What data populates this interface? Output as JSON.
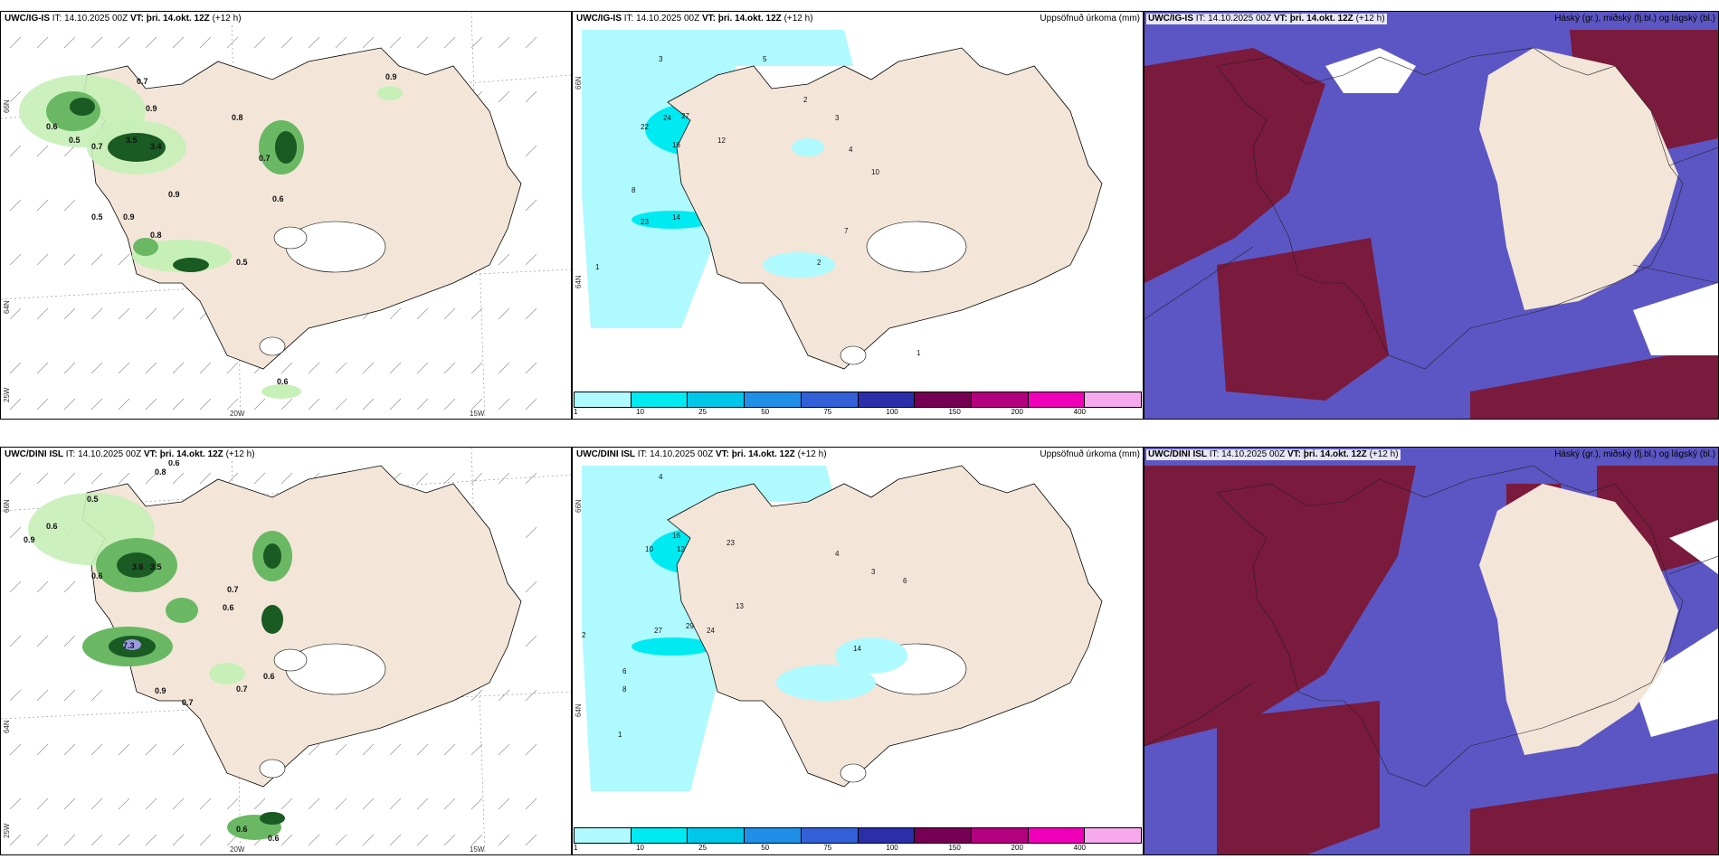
{
  "panels": [
    {
      "id": "p1",
      "model": "UWC/IG-IS",
      "it_label": "IT:",
      "it": "14.10.2025 00Z",
      "vt_label": "VT:",
      "vt": "þri. 14.okt. 12Z",
      "lead": "(+12 h)",
      "right": ""
    },
    {
      "id": "p2",
      "model": "UWC/IG-IS",
      "it_label": "IT:",
      "it": "14.10.2025 00Z",
      "vt_label": "VT:",
      "vt": "þri. 14.okt. 12Z",
      "lead": "(+12 h)",
      "right": "Uppsöfnuð úrkoma (mm)"
    },
    {
      "id": "p3",
      "model": "UWC/IG-IS",
      "it_label": "IT:",
      "it": "14.10.2025 00Z",
      "vt_label": "VT:",
      "vt": "þri. 14.okt. 12Z",
      "lead": "(+12 h)",
      "right": "Háský (gr.), miðský (fj.bl.) og lágský (bl.)"
    },
    {
      "id": "p4",
      "model": "UWC/DINI ISL",
      "it_label": "IT:",
      "it": "14.10.2025 00Z",
      "vt_label": "VT:",
      "vt": "þri. 14.okt. 12Z",
      "lead": "(+12 h)",
      "right": ""
    },
    {
      "id": "p5",
      "model": "UWC/DINI ISL",
      "it_label": "IT:",
      "it": "14.10.2025 00Z",
      "vt_label": "VT:",
      "vt": "þri. 14.okt. 12Z",
      "lead": "(+12 h)",
      "right": "Uppsöfnuð úrkoma (mm)"
    },
    {
      "id": "p6",
      "model": "UWC/DINI ISL",
      "it_label": "IT:",
      "it": "14.10.2025 00Z",
      "vt_label": "VT:",
      "vt": "þri. 14.okt. 12Z",
      "lead": "(+12 h)",
      "right": "Háský (gr.), miðský (fj.bl.) og lágský (bl.)"
    }
  ],
  "axes": {
    "lat_top": "66N",
    "lat_bottom": "64N",
    "lat_bottom_edge": "25W",
    "lon_left": "20W",
    "lon_right": "15W"
  },
  "colorbar": {
    "ticks": [
      "1",
      "10",
      "25",
      "50",
      "75",
      "100",
      "150",
      "200",
      "400"
    ],
    "colors": [
      "#aefaff",
      "#00eaf2",
      "#00c6ea",
      "#1f8fe8",
      "#3360d6",
      "#2a2fa9",
      "#750053",
      "#b3007e",
      "#f000b9",
      "#f7a9ee"
    ]
  },
  "colors": {
    "land": "#f3e6d8",
    "sea": "#ffffff",
    "wind_green_light": "#c7f0b8",
    "wind_green_mid": "#6ab864",
    "wind_green_dark": "#1a5a23",
    "precip_light": "#aefaff",
    "precip_mid": "#00eaf2",
    "cloud_high": "#7a1a3c",
    "cloud_mid": "#5c56c4",
    "cloud_low": "#3a4bd6"
  },
  "wind_values_top": [
    "0.7",
    "0.9",
    "0.6",
    "0.5",
    "0.7",
    "3.5",
    "3.4",
    "0.8",
    "0.7",
    "0.9",
    "0.6",
    "0.5",
    "0.8",
    "0.9",
    "0.5",
    "0.9",
    "0.6"
  ],
  "wind_values_bottom": [
    "0.8",
    "0.6",
    "0.5",
    "0.6",
    "0.9",
    "3.6",
    "3.5",
    "0.7",
    "0.6",
    "0.6",
    "7.3",
    "0.9",
    "0.7",
    "0.7",
    "0.6",
    "0.6",
    "0.6"
  ],
  "precip_values_top": [
    "3",
    "5",
    "22",
    "24",
    "27",
    "12",
    "16",
    "8",
    "23",
    "14",
    "2",
    "3",
    "4",
    "1",
    "2",
    "7",
    "10",
    "1"
  ],
  "precip_values_bottom": [
    "4",
    "10",
    "16",
    "12",
    "23",
    "29",
    "24",
    "27",
    "13",
    "14",
    "2",
    "6",
    "8",
    "1",
    "4",
    "3",
    "6"
  ]
}
